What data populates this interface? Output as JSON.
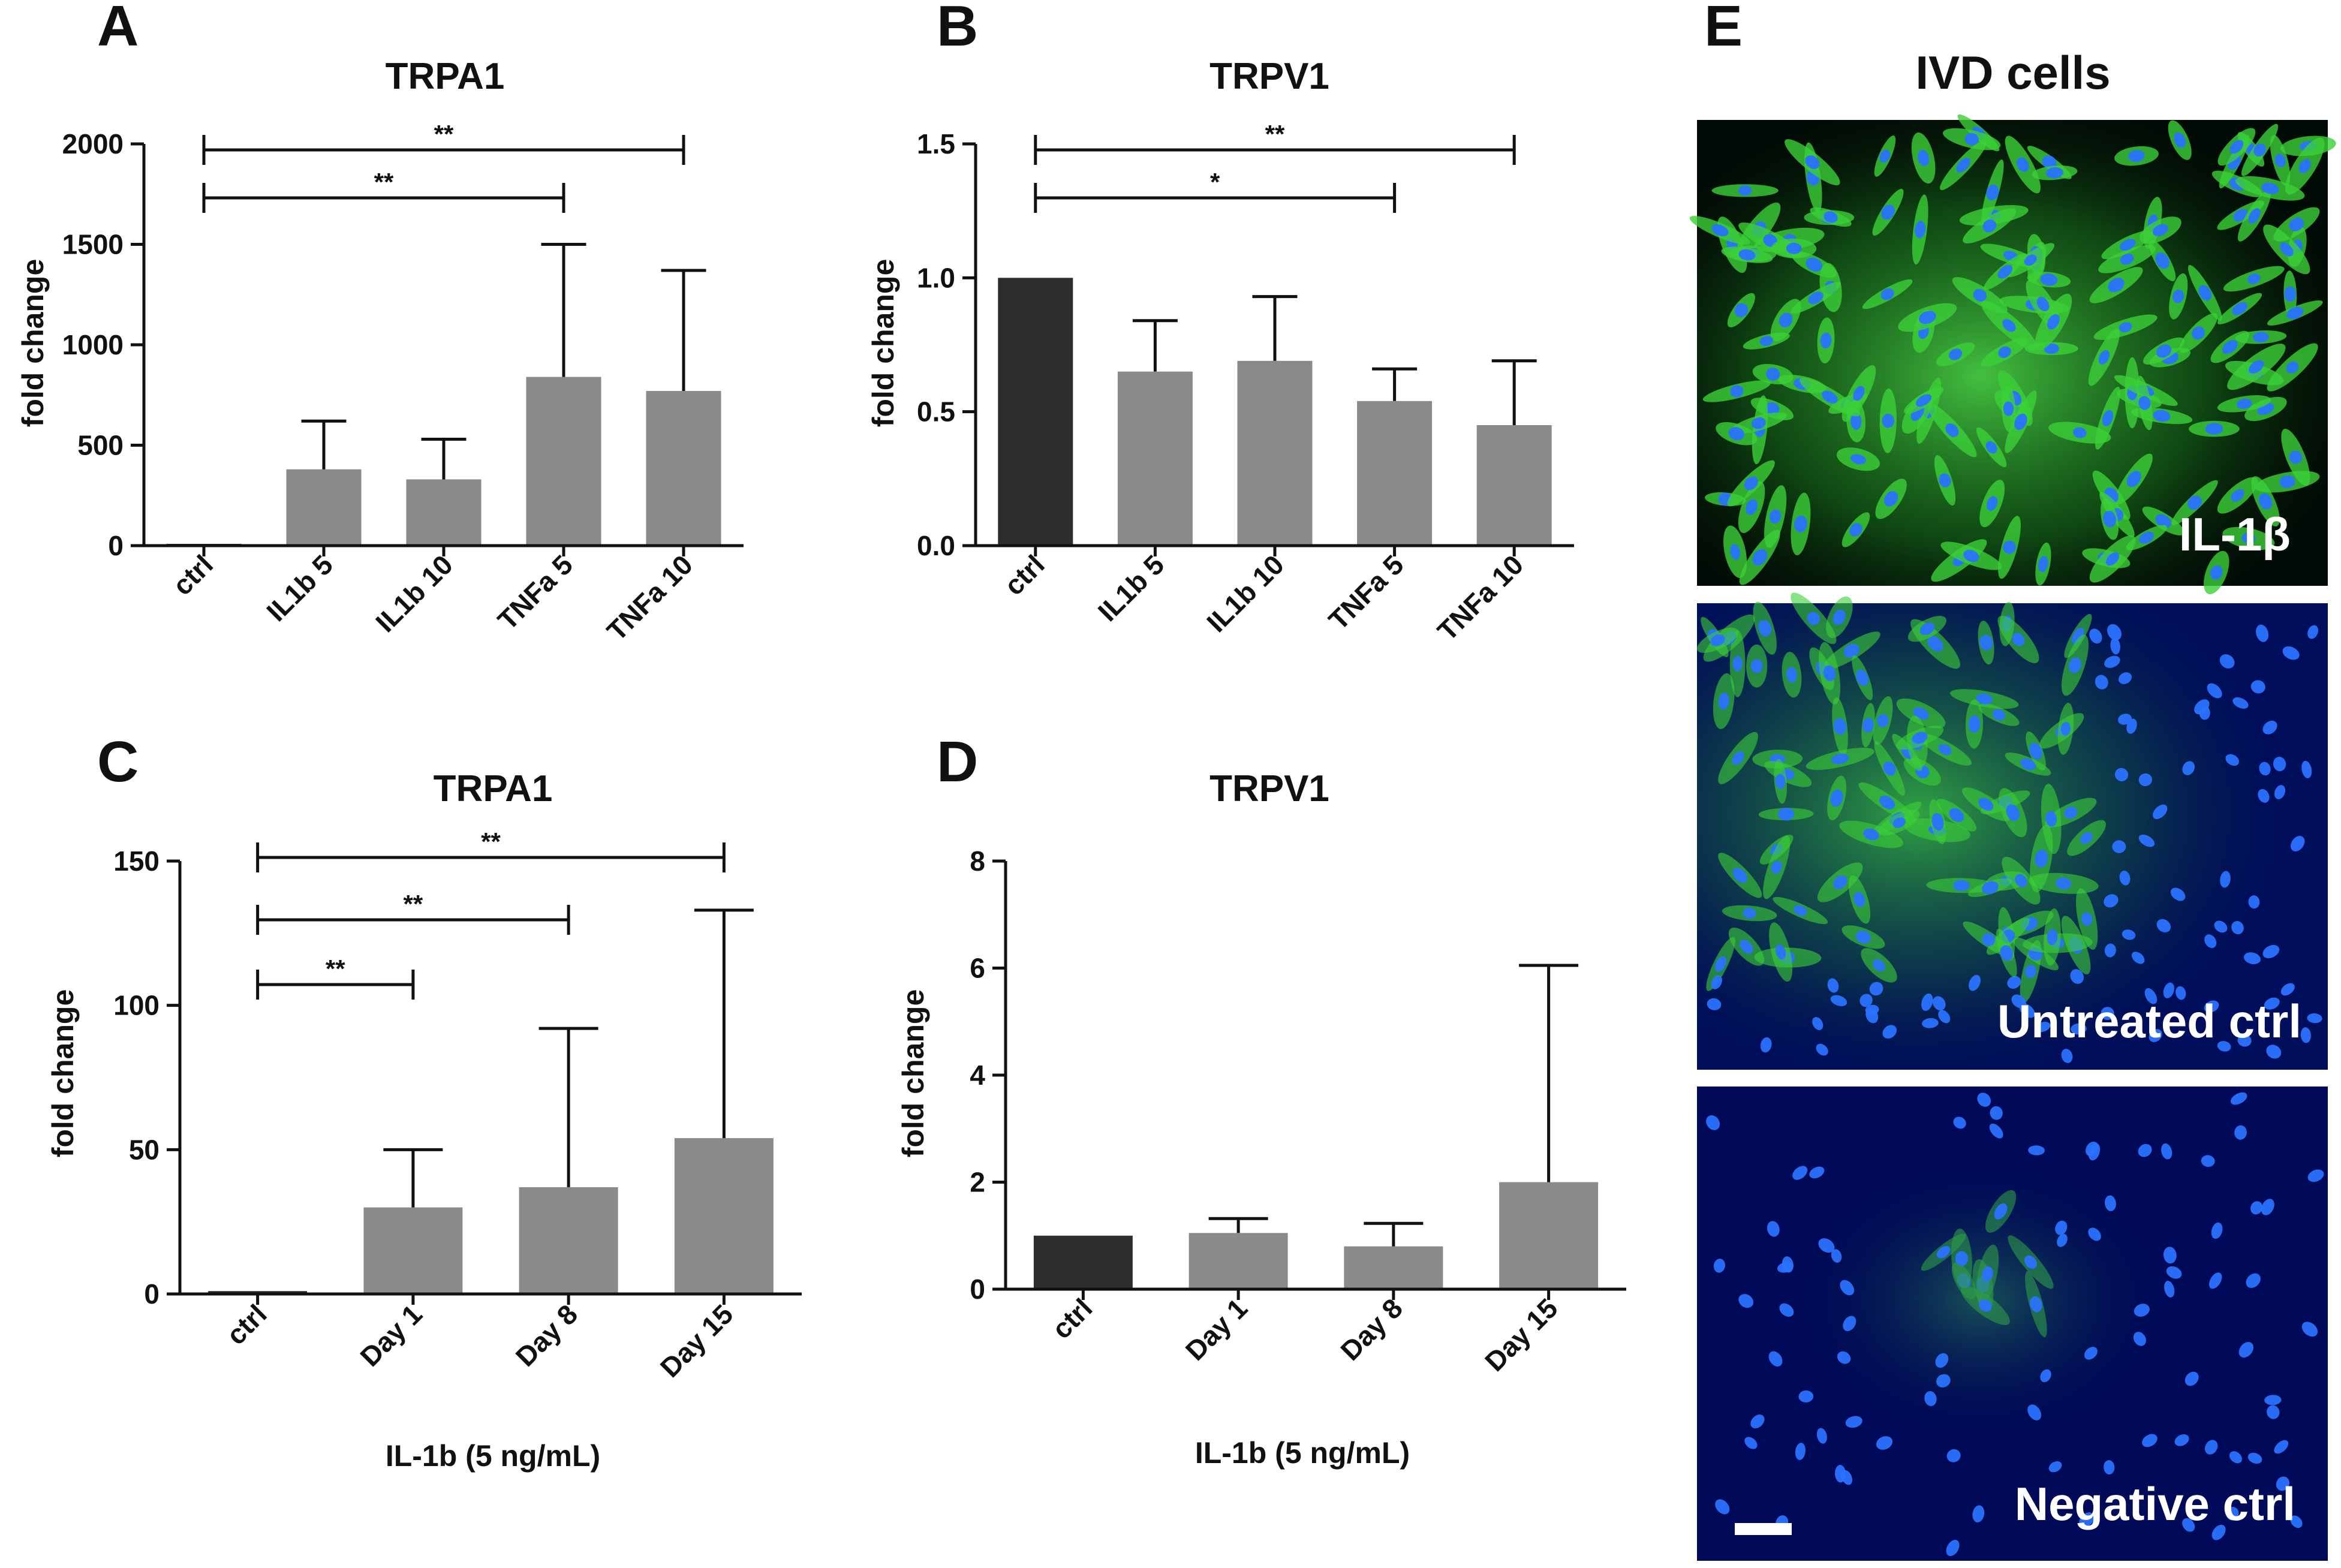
{
  "chart_data": [
    {
      "panel": "A",
      "type": "bar",
      "title": "TRPA1",
      "xlabel": "",
      "ylabel": "fold change",
      "ylim": [
        0,
        2000
      ],
      "yticks": [
        0,
        500,
        1000,
        1500,
        2000
      ],
      "categories": [
        "ctrl",
        "IL1b 5",
        "IL1b 10",
        "TNFa 5",
        "TNFa 10"
      ],
      "values": [
        1,
        380,
        330,
        840,
        770
      ],
      "errors": [
        0,
        240,
        200,
        660,
        600
      ],
      "bar_colors": [
        "#2d2d2d",
        "#8a8a8a",
        "#8a8a8a",
        "#8a8a8a",
        "#8a8a8a"
      ],
      "significance": [
        {
          "from": "ctrl",
          "to": "TNFa 10",
          "label": "**",
          "y": 1985
        },
        {
          "from": "ctrl",
          "to": "TNFa 5",
          "label": "**",
          "y": 1740
        }
      ]
    },
    {
      "panel": "B",
      "type": "bar",
      "title": "TRPV1",
      "xlabel": "",
      "ylabel": "fold change",
      "ylim": [
        0,
        1.5
      ],
      "yticks": [
        "0.0",
        "0.5",
        "1.0",
        "1.5"
      ],
      "categories": [
        "ctrl",
        "IL1b 5",
        "IL1b 10",
        "TNFa 5",
        "TNFa 10"
      ],
      "values": [
        1.0,
        0.65,
        0.69,
        0.54,
        0.45
      ],
      "errors": [
        0,
        0.19,
        0.24,
        0.12,
        0.24
      ],
      "bar_colors": [
        "#2d2d2d",
        "#8a8a8a",
        "#8a8a8a",
        "#8a8a8a",
        "#8a8a8a"
      ],
      "significance": [
        {
          "from": "ctrl",
          "to": "TNFa 10",
          "label": "**",
          "y": 1.48
        },
        {
          "from": "ctrl",
          "to": "TNFa 5",
          "label": "*",
          "y": 1.3
        }
      ]
    },
    {
      "panel": "C",
      "type": "bar",
      "title": "TRPA1",
      "xlabel": "IL-1b (5 ng/mL)",
      "ylabel": "fold change",
      "ylim": [
        0,
        150
      ],
      "yticks": [
        0,
        50,
        100,
        150
      ],
      "categories": [
        "ctrl",
        "Day 1",
        "Day 8",
        "Day 15"
      ],
      "values": [
        1,
        30,
        37,
        54
      ],
      "errors": [
        0,
        20,
        55,
        79
      ],
      "bar_colors": [
        "#2d2d2d",
        "#8a8a8a",
        "#8a8a8a",
        "#8a8a8a"
      ],
      "significance": [
        {
          "from": "ctrl",
          "to": "Day 15",
          "label": "**",
          "y": 150
        },
        {
          "from": "ctrl",
          "to": "Day 8",
          "label": "**",
          "y": 129
        },
        {
          "from": "ctrl",
          "to": "Day 1",
          "label": "**",
          "y": 110
        }
      ]
    },
    {
      "panel": "D",
      "type": "bar",
      "title": "TRPV1",
      "xlabel": "IL-1b (5 ng/mL)",
      "ylabel": "fold change",
      "ylim": [
        0,
        8
      ],
      "yticks": [
        0,
        2,
        4,
        6,
        8
      ],
      "categories": [
        "ctrl",
        "Day 1",
        "Day 8",
        "Day 15"
      ],
      "values": [
        1.0,
        1.05,
        0.8,
        2.0
      ],
      "errors": [
        0,
        0.27,
        0.43,
        4.05
      ],
      "bar_colors": [
        "#2d2d2d",
        "#8a8a8a",
        "#8a8a8a",
        "#8a8a8a"
      ],
      "significance": []
    }
  ],
  "panel_e": {
    "letter": "E",
    "title": "IVD cells",
    "images": [
      {
        "caption": "IL-1β",
        "tone": "strong-green"
      },
      {
        "caption": "Untreated ctrl",
        "tone": "medium-green"
      },
      {
        "caption": "Negative  ctrl",
        "tone": "dark-blue"
      }
    ]
  },
  "colors": {
    "control_bar": "#2d2d2d",
    "treated_bar": "#8a8a8a",
    "nuclei": "#1f5eff",
    "cytoplasm": "#37c93a"
  }
}
